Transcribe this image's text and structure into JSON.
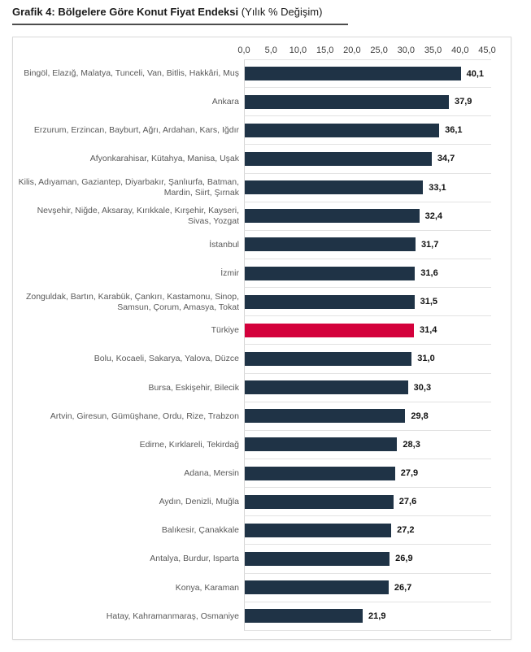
{
  "title": {
    "bold": "Grafik 4: Bölgelere Göre Konut Fiyat Endeksi",
    "note": " (Yılık % Değişim)"
  },
  "chart_data": {
    "type": "bar",
    "orientation": "horizontal",
    "title": "Grafik 4: Bölgelere Göre Konut Fiyat Endeksi",
    "subtitle": "(Yılık % Değişim)",
    "xlim": [
      0,
      45
    ],
    "x_tick_labels": [
      "0,0",
      "5,0",
      "10,0",
      "15,0",
      "20,0",
      "25,0",
      "30,0",
      "35,0",
      "40,0",
      "45,0"
    ],
    "x_tick_values": [
      0,
      5,
      10,
      15,
      20,
      25,
      30,
      35,
      40,
      45
    ],
    "grid": "row-separators",
    "legend": "none",
    "categories": [
      "Bingöl, Elazığ, Malatya, Tunceli, Van, Bitlis, Hakkâri, Muş",
      "Ankara",
      "Erzurum, Erzincan, Bayburt, Ağrı, Ardahan, Kars, Iğdır",
      "Afyonkarahisar, Kütahya, Manisa, Uşak",
      "Kilis, Adıyaman, Gaziantep, Diyarbakır, Şanlıurfa, Batman, Mardin, Siirt, Şırnak",
      "Nevşehir, Niğde, Aksaray, Kırıkkale, Kırşehir, Kayseri, Sivas, Yozgat",
      "İstanbul",
      "İzmir",
      "Zonguldak, Bartın, Karabük, Çankırı, Kastamonu, Sinop, Samsun, Çorum, Amasya, Tokat",
      "Türkiye",
      "Bolu, Kocaeli, Sakarya, Yalova, Düzce",
      "Bursa, Eskişehir, Bilecik",
      "Artvin, Giresun, Gümüşhane, Ordu, Rize, Trabzon",
      "Edirne, Kırklareli, Tekirdağ",
      "Adana, Mersin",
      "Aydın, Denizli, Muğla",
      "Balıkesir, Çanakkale",
      "Antalya, Burdur, Isparta",
      "Konya, Karaman",
      "Hatay, Kahramanmaraş, Osmaniye"
    ],
    "values": [
      40.1,
      37.9,
      36.1,
      34.7,
      33.1,
      32.4,
      31.7,
      31.6,
      31.5,
      31.4,
      31.0,
      30.3,
      29.8,
      28.3,
      27.9,
      27.6,
      27.2,
      26.9,
      26.7,
      21.9
    ],
    "value_labels": [
      "40,1",
      "37,9",
      "36,1",
      "34,7",
      "33,1",
      "32,4",
      "31,7",
      "31,6",
      "31,5",
      "31,4",
      "31,0",
      "30,3",
      "29,8",
      "28,3",
      "27,9",
      "27,6",
      "27,2",
      "26,9",
      "26,7",
      "21,9"
    ],
    "highlight_category": "Türkiye",
    "colors": {
      "bar": "#1f3346",
      "highlight": "#d4013c",
      "separator": "#e2e2e2",
      "label_text": "#595959",
      "value_text": "#111111"
    }
  }
}
